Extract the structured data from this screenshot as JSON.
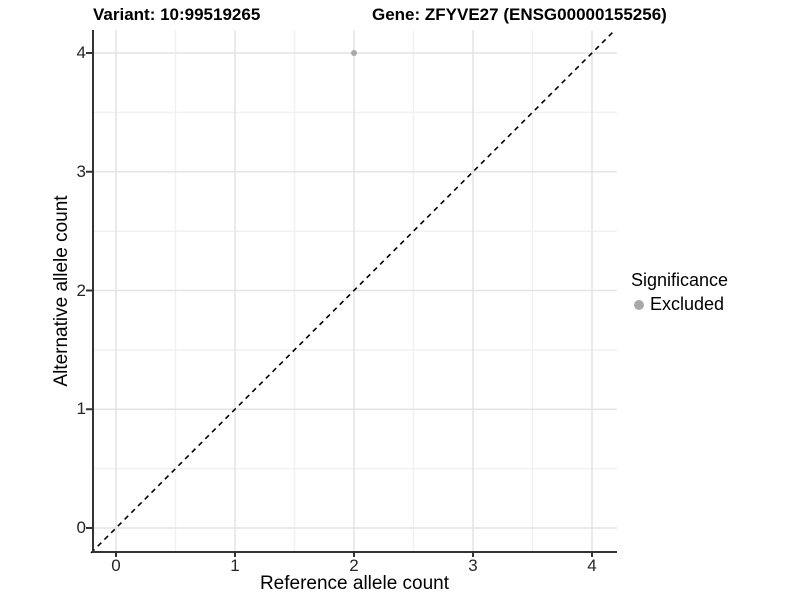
{
  "header": {
    "variant_title": "Variant: 10:99519265",
    "gene_title": "Gene: ZFYVE27 (ENSG00000155256)"
  },
  "chart_data": {
    "type": "scatter",
    "xlabel": "Reference allele count",
    "ylabel": "Alternative allele count",
    "x_ticks": [
      0,
      1,
      2,
      3,
      4
    ],
    "y_ticks": [
      0,
      1,
      2,
      3,
      4
    ],
    "xlim": [
      -0.21,
      4.21
    ],
    "ylim": [
      -0.21,
      4.21
    ],
    "grid": "major and minor gridlines on, white background",
    "points": [
      {
        "x": 2,
        "y": 4,
        "series": "Excluded"
      }
    ],
    "identity_line": {
      "style": "dashed",
      "slope": 1,
      "intercept": 0,
      "color": "#000000"
    },
    "legend": {
      "title": "Significance",
      "position": "right",
      "items": [
        {
          "label": "Excluded",
          "color": "#a9a9a9"
        }
      ]
    },
    "colors": {
      "point_excluded": "#a9a9a9",
      "grid_major": "#e4e4e4",
      "grid_minor": "#f1f1f1",
      "axis": "#333333",
      "tick_text": "#262626"
    }
  }
}
